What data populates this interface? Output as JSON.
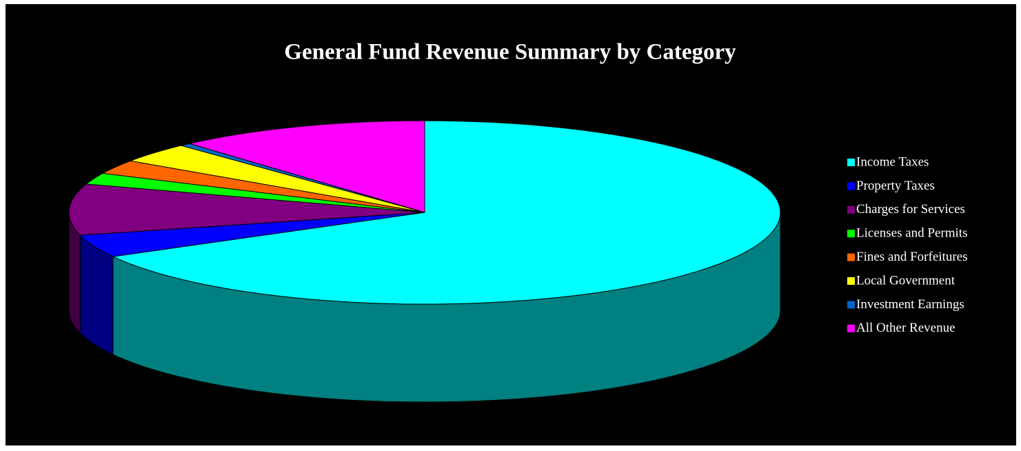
{
  "chart_data": {
    "type": "pie",
    "title": "General Fund Revenue Summary by Category",
    "categories": [
      "Income Taxes",
      "Property Taxes",
      "Charges for Services",
      "Licenses and Permits",
      "Fines and Forfeitures",
      "Local Government",
      "Investment Earnings",
      "All Other Revenue"
    ],
    "values": [
      67,
      4,
      9,
      2,
      2.5,
      3.5,
      0.5,
      11.5
    ],
    "colors": [
      "#00ffff",
      "#0000ff",
      "#800080",
      "#00ff00",
      "#ff6600",
      "#ffff00",
      "#0066cc",
      "#ff00ff"
    ],
    "legend": "right",
    "three_d": true
  }
}
